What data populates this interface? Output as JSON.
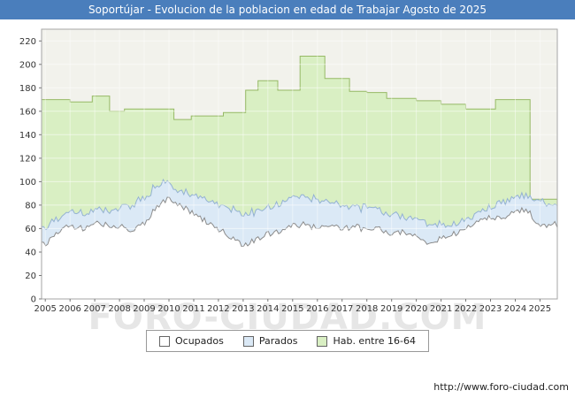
{
  "title_bar": {
    "text": "Soportújar - Evolucion de la poblacion en edad de Trabajar Agosto de 2025",
    "bg_color": "#4a7ebc",
    "text_color": "#ffffff"
  },
  "watermark": "FORO-CIUDAD.COM",
  "footer": {
    "url": "http://www.foro-ciudad.com"
  },
  "chart_data": {
    "type": "area",
    "title": "Soportújar - Evolucion de la poblacion en edad de Trabajar Agosto de 2025",
    "xlabel": "",
    "ylabel": "",
    "grid": true,
    "legend_position": "bottom-center",
    "x_range": [
      2004.85,
      2025.7
    ],
    "y_range": [
      0,
      230
    ],
    "x_ticks": [
      2005,
      2006,
      2007,
      2008,
      2009,
      2010,
      2011,
      2012,
      2013,
      2014,
      2015,
      2016,
      2017,
      2018,
      2019,
      2020,
      2021,
      2022,
      2023,
      2024,
      2025
    ],
    "y_ticks": [
      0,
      20,
      40,
      60,
      80,
      100,
      120,
      140,
      160,
      180,
      200,
      220
    ],
    "plot_bg": "#f2f2ec",
    "stacked_x": [
      2005,
      2005.5,
      2006,
      2006.5,
      2007,
      2007.5,
      2008,
      2008.5,
      2009,
      2009.5,
      2010,
      2010.5,
      2011,
      2011.5,
      2012,
      2012.5,
      2013,
      2013.5,
      2014,
      2014.5,
      2015,
      2015.5,
      2016,
      2016.5,
      2017,
      2017.5,
      2018,
      2018.5,
      2019,
      2019.5,
      2020,
      2020.5,
      2021,
      2021.5,
      2022,
      2022.5,
      2023,
      2023.5,
      2024,
      2024.5,
      2025,
      2025.5
    ],
    "series": [
      {
        "name": "Ocupados",
        "role": "stacked-area",
        "fill": "#ffffff",
        "stroke": "#8c8c8c",
        "values": [
          47,
          58,
          62,
          60,
          64,
          63,
          62,
          58,
          64,
          78,
          86,
          80,
          72,
          66,
          60,
          52,
          45,
          50,
          55,
          58,
          62,
          64,
          60,
          62,
          60,
          62,
          58,
          60,
          56,
          58,
          52,
          48,
          52,
          55,
          60,
          65,
          70,
          68,
          74,
          76,
          62,
          64
        ]
      },
      {
        "name": "Parados",
        "role": "stacked-area",
        "fill": "#dbe9f6",
        "stroke": "#94b2d3",
        "values": [
          15,
          12,
          12,
          12,
          12,
          12,
          16,
          22,
          22,
          18,
          14,
          12,
          16,
          19,
          20,
          24,
          27,
          24,
          23,
          24,
          24,
          24,
          24,
          20,
          20,
          17,
          19,
          15,
          17,
          13,
          16,
          17,
          11,
          9,
          8,
          7,
          8,
          14,
          12,
          12,
          22,
          16
        ]
      },
      {
        "name": "Hab. entre 16-64",
        "role": "step-area",
        "fill": "#d9efc3",
        "stroke": "#96b965",
        "steps": [
          {
            "x": 2004.85,
            "v": 170
          },
          {
            "x": 2006.0,
            "v": 168
          },
          {
            "x": 2006.9,
            "v": 173
          },
          {
            "x": 2007.6,
            "v": 160
          },
          {
            "x": 2008.2,
            "v": 162
          },
          {
            "x": 2010.2,
            "v": 153
          },
          {
            "x": 2010.9,
            "v": 156
          },
          {
            "x": 2012.2,
            "v": 159
          },
          {
            "x": 2013.1,
            "v": 178
          },
          {
            "x": 2013.6,
            "v": 186
          },
          {
            "x": 2014.4,
            "v": 178
          },
          {
            "x": 2015.3,
            "v": 207
          },
          {
            "x": 2016.3,
            "v": 188
          },
          {
            "x": 2017.3,
            "v": 177
          },
          {
            "x": 2018.0,
            "v": 176
          },
          {
            "x": 2018.8,
            "v": 171
          },
          {
            "x": 2020.0,
            "v": 169
          },
          {
            "x": 2021.0,
            "v": 166
          },
          {
            "x": 2022.0,
            "v": 162
          },
          {
            "x": 2023.2,
            "v": 170
          },
          {
            "x": 2024.6,
            "v": 85
          }
        ]
      }
    ]
  }
}
